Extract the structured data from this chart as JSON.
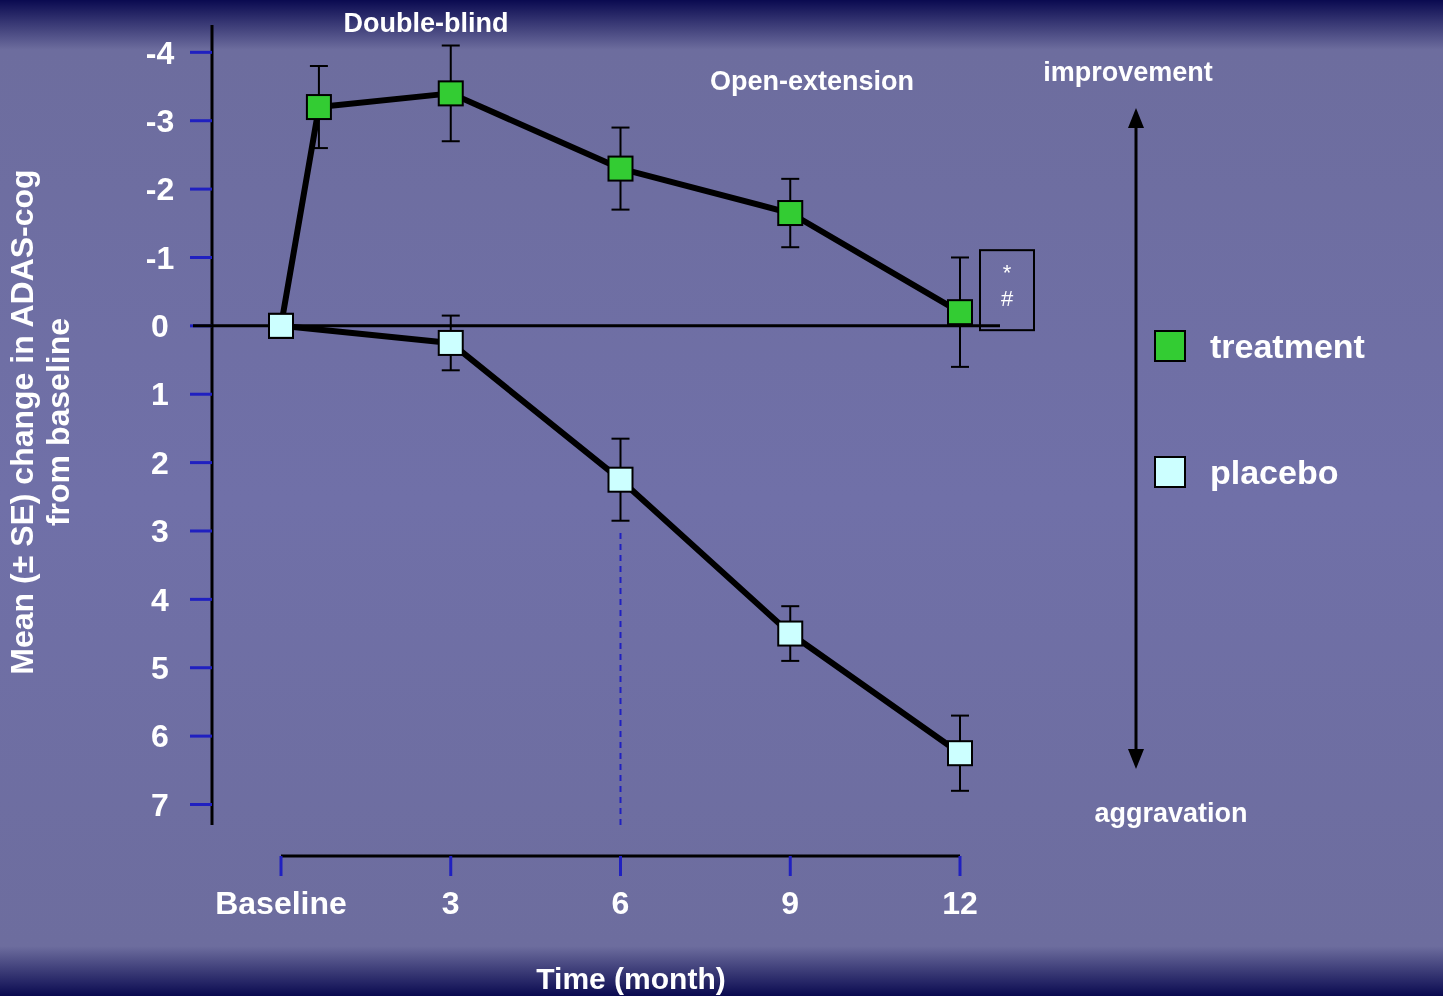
{
  "chart_data": {
    "type": "line",
    "xlabel": "Time (month)",
    "ylabel": "Mean (± SE) change in ADAS-cog\nfrom baseline",
    "xlim": [
      0,
      12
    ],
    "xticks": [
      {
        "value": 0,
        "label": "Baseline"
      },
      3,
      6,
      9,
      12
    ],
    "ylim": [
      7.3,
      -4.4
    ],
    "yticks": [
      -4,
      -3,
      -2,
      -1,
      0,
      1,
      2,
      3,
      4,
      5,
      6,
      7
    ],
    "series": [
      {
        "name": "treatment",
        "color": "#33cc33",
        "x": [
          0,
          0.67,
          3,
          6,
          9,
          12
        ],
        "values": [
          0,
          -3.2,
          -3.4,
          -2.3,
          -1.65,
          -0.2
        ],
        "errors": [
          null,
          0.6,
          0.7,
          0.6,
          0.5,
          0.8
        ]
      },
      {
        "name": "placebo",
        "color": "#ccffff",
        "x": [
          0,
          3,
          6,
          9,
          12
        ],
        "values": [
          0,
          0.25,
          2.25,
          4.5,
          6.25
        ],
        "errors": [
          null,
          0.4,
          0.6,
          0.4,
          0.55
        ]
      }
    ],
    "ref_lines": [
      {
        "axis": "y",
        "value": 0,
        "color": "#000000"
      },
      {
        "axis": "x",
        "value": 6,
        "line_style": "dashed",
        "color": "#2020c0"
      }
    ],
    "annotations": [
      "Double-blind",
      "Open-extension",
      "improvement",
      "aggravation",
      {
        "text": "*\n#",
        "x": 12,
        "y": -0.2
      }
    ],
    "marker": "square",
    "legend": "right",
    "grid": false
  }
}
